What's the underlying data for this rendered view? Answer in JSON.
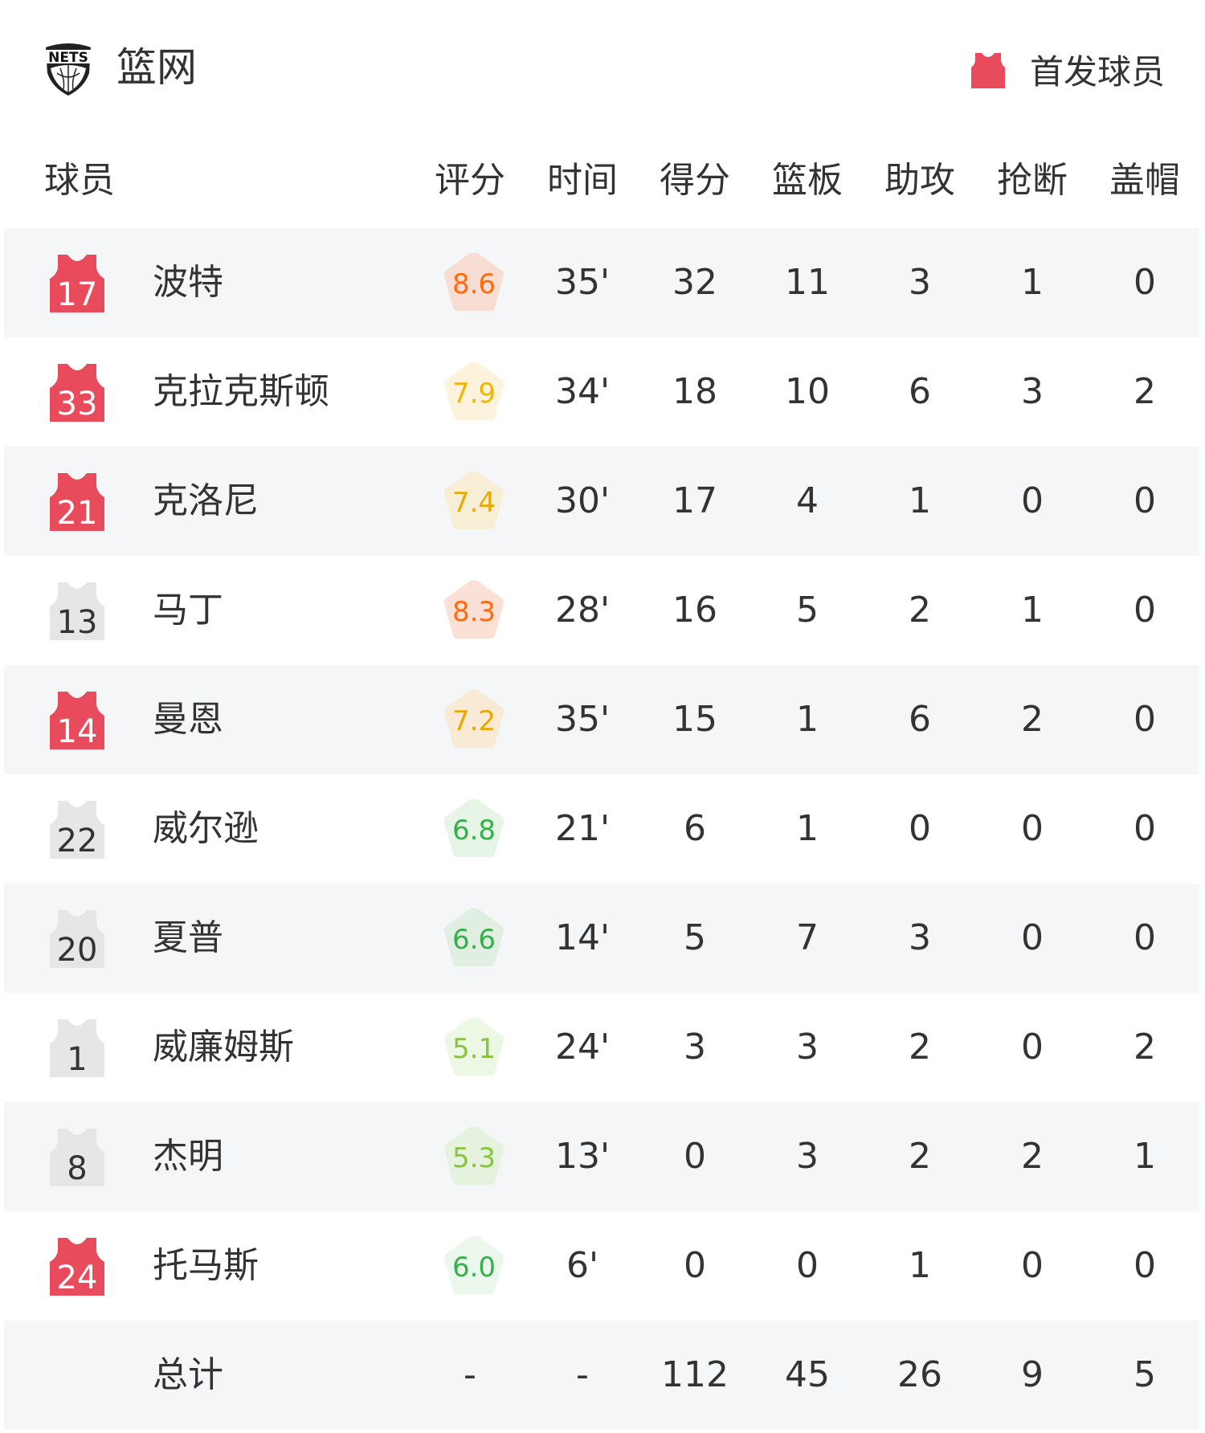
{
  "header": {
    "team_name": "篮网",
    "logo_text": "NETS",
    "legend_label": "首发球员",
    "legend_color": "#e84c5c"
  },
  "columns": {
    "player": "球员",
    "rating": "评分",
    "time": "时间",
    "points": "得分",
    "rebounds": "篮板",
    "assists": "助攻",
    "steals": "抢断",
    "blocks": "盖帽"
  },
  "players": [
    {
      "number": "17",
      "starter": true,
      "name": "波特",
      "rating": "8.6",
      "time": "35'",
      "points": "32",
      "rebounds": "11",
      "assists": "3",
      "steals": "1",
      "blocks": "0",
      "rating_color": "#ff6a10",
      "rating_bg": "#f8ded2"
    },
    {
      "number": "33",
      "starter": true,
      "name": "克拉克斯顿",
      "rating": "7.9",
      "time": "34'",
      "points": "18",
      "rebounds": "10",
      "assists": "6",
      "steals": "3",
      "blocks": "2",
      "rating_color": "#f5b400",
      "rating_bg": "#fdf3dc"
    },
    {
      "number": "21",
      "starter": true,
      "name": "克洛尼",
      "rating": "7.4",
      "time": "30'",
      "points": "17",
      "rebounds": "4",
      "assists": "1",
      "steals": "0",
      "blocks": "0",
      "rating_color": "#eaa800",
      "rating_bg": "#f8eed6"
    },
    {
      "number": "13",
      "starter": false,
      "name": "马丁",
      "rating": "8.3",
      "time": "28'",
      "points": "16",
      "rebounds": "5",
      "assists": "2",
      "steals": "1",
      "blocks": "0",
      "rating_color": "#ff6a10",
      "rating_bg": "#fbe0d6"
    },
    {
      "number": "14",
      "starter": true,
      "name": "曼恩",
      "rating": "7.2",
      "time": "35'",
      "points": "15",
      "rebounds": "1",
      "assists": "6",
      "steals": "2",
      "blocks": "0",
      "rating_color": "#eaa800",
      "rating_bg": "#f8ead4"
    },
    {
      "number": "22",
      "starter": false,
      "name": "威尔逊",
      "rating": "6.8",
      "time": "21'",
      "points": "6",
      "rebounds": "1",
      "assists": "0",
      "steals": "0",
      "blocks": "0",
      "rating_color": "#35b04a",
      "rating_bg": "#e6f5e6"
    },
    {
      "number": "20",
      "starter": false,
      "name": "夏普",
      "rating": "6.6",
      "time": "14'",
      "points": "5",
      "rebounds": "7",
      "assists": "3",
      "steals": "0",
      "blocks": "0",
      "rating_color": "#35b04a",
      "rating_bg": "#e0efe2"
    },
    {
      "number": "1",
      "starter": false,
      "name": "威廉姆斯",
      "rating": "5.1",
      "time": "24'",
      "points": "3",
      "rebounds": "3",
      "assists": "2",
      "steals": "0",
      "blocks": "2",
      "rating_color": "#88c440",
      "rating_bg": "#ecf8e4"
    },
    {
      "number": "8",
      "starter": false,
      "name": "杰明",
      "rating": "5.3",
      "time": "13'",
      "points": "0",
      "rebounds": "3",
      "assists": "2",
      "steals": "2",
      "blocks": "1",
      "rating_color": "#88c440",
      "rating_bg": "#e4f2de"
    },
    {
      "number": "24",
      "starter": true,
      "name": "托马斯",
      "rating": "6.0",
      "time": "6'",
      "points": "0",
      "rebounds": "0",
      "assists": "1",
      "steals": "0",
      "blocks": "0",
      "rating_color": "#35b04a",
      "rating_bg": "#eaf7ea"
    }
  ],
  "totals": {
    "label": "总计",
    "rating": "-",
    "time": "-",
    "points": "112",
    "rebounds": "45",
    "assists": "26",
    "steals": "9",
    "blocks": "5"
  },
  "colors": {
    "starter": "#e84c5c",
    "bench": "#e6e6e6",
    "row_alt": "#f5f6f8"
  }
}
